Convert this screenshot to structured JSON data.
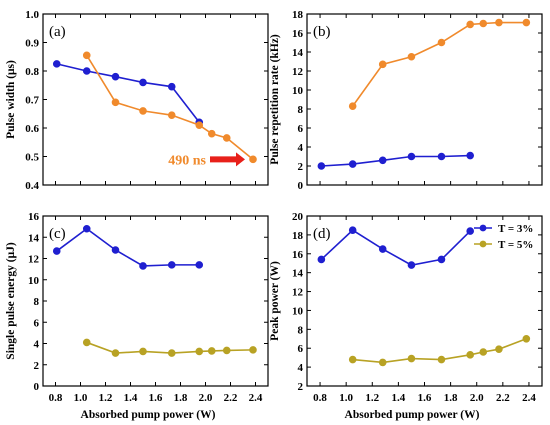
{
  "colors": {
    "blue": "#1f1fd0",
    "orange": "#f08a2c",
    "gold": "#b8a224",
    "arrow": "#e8201a"
  },
  "x_axis_title": "Absorbed pump power (W)",
  "chart_data": [
    {
      "type": "line",
      "panel_label": "(a)",
      "ylabel": "Pulse width (μs)",
      "xlim": [
        0.7,
        2.5
      ],
      "ylim": [
        0.4,
        1.0
      ],
      "xticks": [
        0.8,
        1.0,
        1.2,
        1.4,
        1.6,
        1.8,
        2.0,
        2.2,
        2.4
      ],
      "yticks": [
        0.4,
        0.5,
        0.6,
        0.7,
        0.8,
        0.9,
        1.0
      ],
      "ytick_labels": [
        "0.4",
        "0.5",
        "0.6",
        "0.7",
        "0.8",
        "0.9",
        "1.0"
      ],
      "series": [
        {
          "color_key": "blue",
          "x": [
            0.81,
            1.05,
            1.28,
            1.5,
            1.73,
            1.95
          ],
          "y": [
            0.825,
            0.8,
            0.78,
            0.76,
            0.745,
            0.62
          ]
        },
        {
          "color_key": "orange",
          "x": [
            1.05,
            1.28,
            1.5,
            1.73,
            1.95,
            2.05,
            2.17,
            2.38
          ],
          "y": [
            0.855,
            0.69,
            0.66,
            0.645,
            0.61,
            0.58,
            0.565,
            0.49
          ]
        }
      ],
      "annotation": {
        "text": "490 ns",
        "x": 2.38,
        "y": 0.49,
        "color_key": "orange"
      }
    },
    {
      "type": "line",
      "panel_label": "(b)",
      "ylabel": "Pulse repetition rate (kHz)",
      "xlim": [
        0.7,
        2.5
      ],
      "ylim": [
        0,
        18
      ],
      "xticks": [
        0.8,
        1.0,
        1.2,
        1.4,
        1.6,
        1.8,
        2.0,
        2.2,
        2.4
      ],
      "yticks": [
        0,
        2,
        4,
        6,
        8,
        10,
        12,
        14,
        16,
        18
      ],
      "ytick_labels": [
        "0",
        "2",
        "4",
        "6",
        "8",
        "10",
        "12",
        "14",
        "16",
        "18"
      ],
      "series": [
        {
          "color_key": "blue",
          "x": [
            0.81,
            1.05,
            1.28,
            1.5,
            1.73,
            1.95
          ],
          "y": [
            2.0,
            2.2,
            2.6,
            3.0,
            3.0,
            3.1
          ]
        },
        {
          "color_key": "orange",
          "x": [
            1.05,
            1.28,
            1.5,
            1.73,
            1.95,
            2.05,
            2.17,
            2.38
          ],
          "y": [
            8.3,
            12.7,
            13.5,
            15.0,
            16.9,
            17.0,
            17.1,
            17.1
          ]
        }
      ]
    },
    {
      "type": "line",
      "panel_label": "(c)",
      "ylabel": "Single pulse energy (μJ)",
      "xlim": [
        0.7,
        2.5
      ],
      "ylim": [
        0,
        16
      ],
      "xticks": [
        0.8,
        1.0,
        1.2,
        1.4,
        1.6,
        1.8,
        2.0,
        2.2,
        2.4
      ],
      "xtick_labels": [
        "0.8",
        "1.0",
        "1.2",
        "1.4",
        "1.6",
        "1.8",
        "2.0",
        "2.2",
        "2.4"
      ],
      "yticks": [
        0,
        2,
        4,
        6,
        8,
        10,
        12,
        14,
        16
      ],
      "ytick_labels": [
        "0",
        "2",
        "4",
        "6",
        "8",
        "10",
        "12",
        "14",
        "16"
      ],
      "series": [
        {
          "color_key": "blue",
          "x": [
            0.81,
            1.05,
            1.28,
            1.5,
            1.73,
            1.95
          ],
          "y": [
            12.7,
            14.8,
            12.8,
            11.3,
            11.4,
            11.4
          ]
        },
        {
          "color_key": "gold",
          "x": [
            1.05,
            1.28,
            1.5,
            1.73,
            1.95,
            2.05,
            2.17,
            2.38
          ],
          "y": [
            4.1,
            3.1,
            3.25,
            3.1,
            3.25,
            3.3,
            3.35,
            3.4
          ]
        }
      ]
    },
    {
      "type": "line",
      "panel_label": "(d)",
      "ylabel": "Peak power (W)",
      "xlim": [
        0.7,
        2.5
      ],
      "ylim": [
        2,
        20
      ],
      "xticks": [
        0.8,
        1.0,
        1.2,
        1.4,
        1.6,
        1.8,
        2.0,
        2.2,
        2.4
      ],
      "xtick_labels": [
        "0.8",
        "1.0",
        "1.2",
        "1.4",
        "1.6",
        "1.8",
        "2.0",
        "2.2",
        "2.4"
      ],
      "yticks": [
        2,
        4,
        6,
        8,
        10,
        12,
        14,
        16,
        18,
        20
      ],
      "ytick_labels": [
        "2",
        "4",
        "6",
        "8",
        "10",
        "12",
        "14",
        "16",
        "18",
        "20"
      ],
      "legend_position": "top-right",
      "series": [
        {
          "name": "T = 3%",
          "color_key": "blue",
          "x": [
            0.81,
            1.05,
            1.28,
            1.5,
            1.73,
            1.95
          ],
          "y": [
            15.4,
            18.5,
            16.5,
            14.8,
            15.4,
            18.4
          ]
        },
        {
          "name": "T = 5%",
          "color_key": "gold",
          "x": [
            1.05,
            1.28,
            1.5,
            1.73,
            1.95,
            2.05,
            2.17,
            2.38
          ],
          "y": [
            4.8,
            4.5,
            4.9,
            4.8,
            5.3,
            5.6,
            5.9,
            7.0
          ]
        }
      ]
    }
  ]
}
